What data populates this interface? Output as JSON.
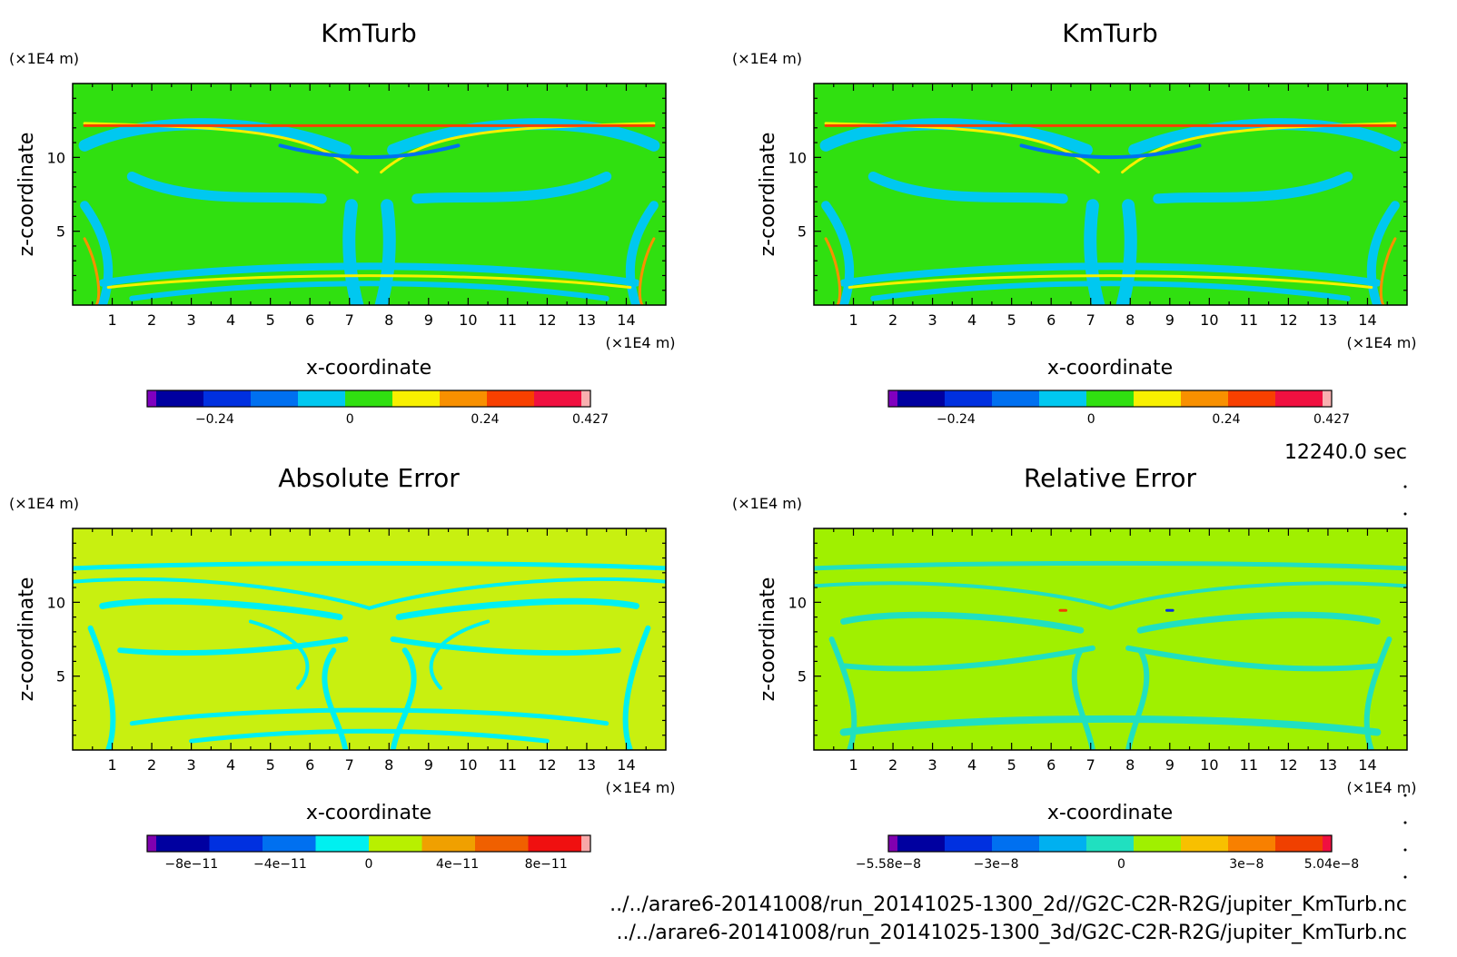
{
  "time_label": "12240.0 sec",
  "file_paths": [
    "../../arare6-20141008/run_20141025-1300_2d//G2C-C2R-R2G/jupiter_KmTurb.nc",
    "../../arare6-20141008/run_20141025-1300_3d/G2C-C2R-R2G/jupiter_KmTurb.nc"
  ],
  "colors": {
    "frame": "#000000",
    "km_palette": [
      "#8000c0",
      "#0000a0",
      "#0030e0",
      "#0070f0",
      "#00c8f0",
      "#30e010",
      "#f8f000",
      "#f89000",
      "#f84000",
      "#f01040",
      "#f8b0b0"
    ],
    "abs_palette": [
      "#8000b0",
      "#0000a0",
      "#0030e0",
      "#0070f0",
      "#00f0f0",
      "#b8f000",
      "#f0a000",
      "#f06000",
      "#f01010",
      "#f8a8a8"
    ],
    "rel_palette": [
      "#8000b0",
      "#0000a0",
      "#0030e0",
      "#0070f0",
      "#00b0f0",
      "#20e0c0",
      "#a0f000",
      "#f8c000",
      "#f88000",
      "#f04000",
      "#f01040"
    ]
  },
  "chart_data": [
    {
      "type": "heatmap",
      "id": "km_2d",
      "title": "KmTurb",
      "xlabel": "x-coordinate",
      "ylabel": "z-coordinate",
      "x_unit": "(×1E4 m)",
      "y_unit": "(×1E4 m)",
      "xlim": [
        0,
        15
      ],
      "ylim": [
        0,
        15
      ],
      "x_ticks": [
        "1",
        "2",
        "3",
        "4",
        "5",
        "6",
        "7",
        "8",
        "9",
        "10",
        "11",
        "12",
        "13",
        "14"
      ],
      "y_ticks": [
        "5",
        "10"
      ],
      "field_background": "#30e010",
      "colorbar": {
        "ticks": [
          "−0.24",
          "0",
          "0.24",
          "0.427"
        ],
        "tick_values": [
          -0.24,
          0,
          0.24,
          0.427
        ],
        "range": [
          -0.36,
          0.427
        ],
        "palette": "km_palette"
      }
    },
    {
      "type": "heatmap",
      "id": "km_3d",
      "title": "KmTurb",
      "xlabel": "x-coordinate",
      "ylabel": "z-coordinate",
      "x_unit": "(×1E4 m)",
      "y_unit": "(×1E4 m)",
      "xlim": [
        0,
        15
      ],
      "ylim": [
        0,
        15
      ],
      "x_ticks": [
        "1",
        "2",
        "3",
        "4",
        "5",
        "6",
        "7",
        "8",
        "9",
        "10",
        "11",
        "12",
        "13",
        "14"
      ],
      "y_ticks": [
        "5",
        "10"
      ],
      "field_background": "#30e010",
      "colorbar": {
        "ticks": [
          "−0.24",
          "0",
          "0.24",
          "0.427"
        ],
        "tick_values": [
          -0.24,
          0,
          0.24,
          0.427
        ],
        "range": [
          -0.36,
          0.427
        ],
        "palette": "km_palette"
      }
    },
    {
      "type": "heatmap",
      "id": "abs_err",
      "title": "Absolute Error",
      "xlabel": "x-coordinate",
      "ylabel": "z-coordinate",
      "x_unit": "(×1E4 m)",
      "y_unit": "(×1E4 m)",
      "xlim": [
        0,
        15
      ],
      "ylim": [
        0,
        15
      ],
      "x_ticks": [
        "1",
        "2",
        "3",
        "4",
        "5",
        "6",
        "7",
        "8",
        "9",
        "10",
        "11",
        "12",
        "13",
        "14"
      ],
      "y_ticks": [
        "5",
        "10"
      ],
      "field_background": "#c8f010",
      "colorbar": {
        "ticks": [
          "−8e−11",
          "−4e−11",
          "0",
          "4e−11",
          "8e−11"
        ],
        "tick_values": [
          -8e-11,
          -4e-11,
          0,
          4e-11,
          8e-11
        ],
        "range": [
          -1e-10,
          1e-10
        ],
        "palette": "abs_palette"
      }
    },
    {
      "type": "heatmap",
      "id": "rel_err",
      "title": "Relative Error",
      "xlabel": "x-coordinate",
      "ylabel": "z-coordinate",
      "x_unit": "(×1E4 m)",
      "y_unit": "(×1E4 m)",
      "xlim": [
        0,
        15
      ],
      "ylim": [
        0,
        15
      ],
      "x_ticks": [
        "1",
        "2",
        "3",
        "4",
        "5",
        "6",
        "7",
        "8",
        "9",
        "10",
        "11",
        "12",
        "13",
        "14"
      ],
      "y_ticks": [
        "5",
        "10"
      ],
      "field_background": "#a0f000",
      "colorbar": {
        "ticks": [
          "−5.58e−8",
          "−3e−8",
          "0",
          "3e−8",
          "5.04e−8"
        ],
        "tick_values": [
          -5.58e-08,
          -3e-08,
          0,
          3e-08,
          5.04e-08
        ],
        "range": [
          -5.58e-08,
          5.04e-08
        ],
        "palette": "rel_palette"
      }
    }
  ]
}
